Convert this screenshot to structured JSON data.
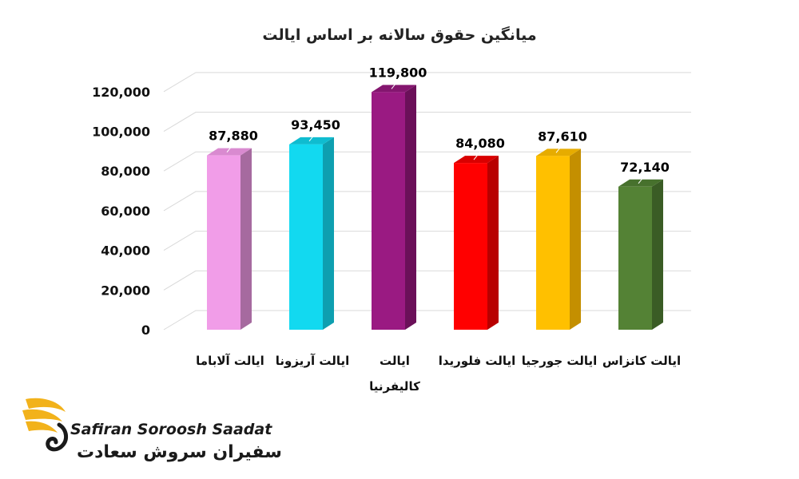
{
  "chart_data": {
    "type": "bar",
    "title": "میانگین حقوق سالانه بر اساس ایالت",
    "categories": [
      "ایالت آلاباما",
      "ایالت آریزونا",
      "ایالت کالیفرنیا",
      "ایالت فلوریدا",
      "ایالت جورجیا",
      "ایالت کانزاس"
    ],
    "category_lines": [
      [
        "ایالت آلاباما"
      ],
      [
        "ایالت آریزونا"
      ],
      [
        "ایالت",
        "کالیفرنیا"
      ],
      [
        "ایالت فلوریدا"
      ],
      [
        "ایالت جورجیا"
      ],
      [
        "ایالت کانزاس"
      ]
    ],
    "values": [
      87880,
      93450,
      119800,
      84080,
      87610,
      72140
    ],
    "value_labels": [
      "87,880",
      "93,450",
      "119,800",
      "84,080",
      "87,610",
      "72,140"
    ],
    "colors": [
      "#f19de8",
      "#12d9f0",
      "#9a1a82",
      "#ff0000",
      "#ffc000",
      "#548235"
    ],
    "side_colors": [
      "#a66a9f",
      "#0e9fb0",
      "#6b1059",
      "#b80000",
      "#c48f00",
      "#3a5c25"
    ],
    "top_colors": [
      "#d98ad0",
      "#0fbcd0",
      "#84166f",
      "#d90000",
      "#e6ac00",
      "#47712d"
    ],
    "yticks": [
      0,
      20000,
      40000,
      60000,
      80000,
      100000,
      120000
    ],
    "ytick_labels": [
      "0",
      "20,000",
      "40,000",
      "60,000",
      "80,000",
      "100,000",
      "120,000"
    ],
    "ylim": [
      0,
      130000
    ],
    "grid": true,
    "style": "3d-bar"
  },
  "logo": {
    "text_en": "Safiran Soroosh Saadat",
    "text_fa": "سفیران سروش سعادت",
    "color": "#f2b21b"
  }
}
